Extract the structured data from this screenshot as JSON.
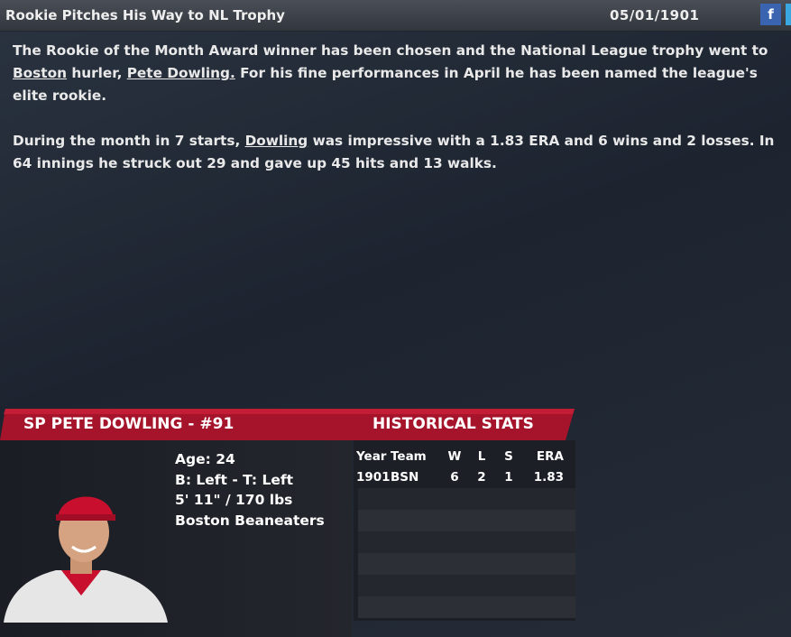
{
  "header": {
    "title": "Rookie Pitches His Way to NL Trophy",
    "date": "05/01/1901",
    "share": "f"
  },
  "article": {
    "paragraphs": [
      [
        {
          "text": "The Rookie of the Month Award winner has been chosen and the National League trophy went to "
        },
        {
          "text": "Boston",
          "link": true
        },
        {
          "text": " hurler, "
        },
        {
          "text": "Pete Dowling.",
          "link": true
        },
        {
          "text": " For his fine performances in April he has been named the league's elite rookie."
        }
      ],
      [
        {
          "text": "During the month in 7 starts, "
        },
        {
          "text": "Dowling",
          "link": true
        },
        {
          "text": " was impressive with a 1.83 ERA and 6 wins and 2 losses. In 64 innings he struck out 29 and gave up 45 hits and 13 walks."
        }
      ]
    ]
  },
  "player": {
    "title": "SP PETE DOWLING - #91",
    "details": [
      "Age: 24",
      "B: Left - T: Left",
      "5' 11\" / 170 lbs",
      "Boston Beaneaters"
    ]
  },
  "stats": {
    "title": "HISTORICAL STATS",
    "columns": [
      "Year",
      "Team",
      "W",
      "L",
      "S",
      "ERA"
    ],
    "rows": [
      [
        "1901",
        "BSN",
        "6",
        "2",
        "1",
        "1.83"
      ]
    ]
  }
}
